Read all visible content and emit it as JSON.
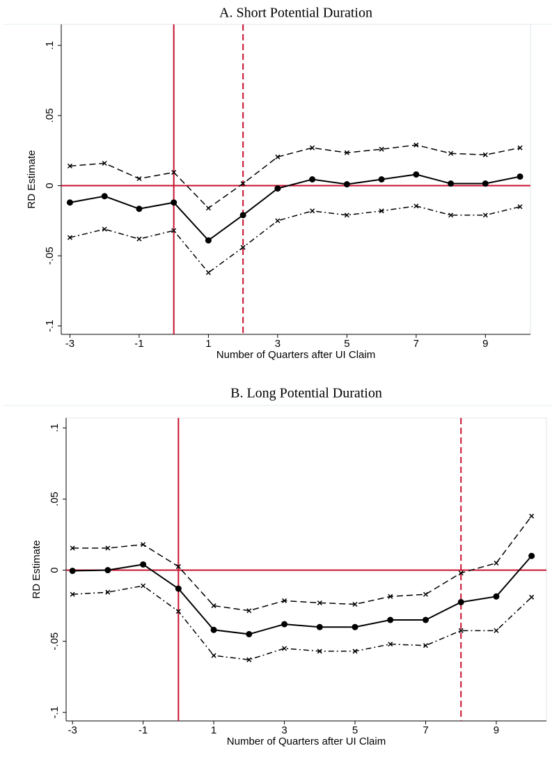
{
  "chart_data": [
    {
      "type": "line",
      "title": "A. Short Potential Duration",
      "x_label": "Number of Quarters after UI Claim",
      "y_label": "RD Estimate",
      "x": [
        -3,
        -2,
        -1,
        0,
        1,
        2,
        3,
        4,
        5,
        6,
        7,
        8,
        9,
        10
      ],
      "series": [
        {
          "color": "#000000",
          "line_style": "solid",
          "marker": "circle",
          "values": [
            -0.012,
            -0.0075,
            -0.0165,
            -0.012,
            -0.039,
            -0.021,
            -0.002,
            0.0045,
            0.001,
            0.0045,
            0.008,
            0.0015,
            0.0015,
            0.0065
          ]
        },
        {
          "color": "#000000",
          "line_style": "dashed",
          "marker": "x",
          "values": [
            0.014,
            0.016,
            0.005,
            0.0095,
            -0.016,
            0.0015,
            0.0205,
            0.027,
            0.0235,
            0.026,
            0.029,
            0.023,
            0.022,
            0.027
          ]
        },
        {
          "color": "#000000",
          "line_style": "dashdot",
          "marker": "x",
          "values": [
            -0.037,
            -0.031,
            -0.038,
            -0.032,
            -0.062,
            -0.044,
            -0.025,
            -0.018,
            -0.021,
            -0.018,
            -0.0145,
            -0.021,
            -0.021,
            -0.015
          ]
        }
      ],
      "xlim": [
        -3.25,
        10.3
      ],
      "xticks": [
        -3,
        -1,
        1,
        3,
        5,
        7,
        9
      ],
      "ylim": [
        -0.106,
        0.115
      ],
      "yticks": [
        {
          "value": -0.1,
          "label": "-.1"
        },
        {
          "value": -0.05,
          "label": "-.05"
        },
        0,
        {
          "value": 0.05,
          "label": ".05"
        },
        {
          "value": 0.1,
          "label": ".1"
        }
      ],
      "hline": 0,
      "reference_color": "#c8102e",
      "vlines": [
        {
          "x": 0,
          "line_style": "solid"
        },
        {
          "x": 2,
          "line_style": "dashed"
        }
      ]
    },
    {
      "type": "line",
      "title": "B. Long Potential Duration",
      "x_label": "Number of Quarters after UI Claim",
      "y_label": "RD Estimate",
      "x": [
        -3,
        -2,
        -1,
        0,
        1,
        2,
        3,
        4,
        5,
        6,
        7,
        8,
        9,
        10
      ],
      "series": [
        {
          "color": "#000000",
          "line_style": "solid",
          "marker": "circle",
          "values": [
            -0.0005,
            0,
            0.004,
            -0.013,
            -0.042,
            -0.045,
            -0.038,
            -0.04,
            -0.04,
            -0.035,
            -0.035,
            -0.0225,
            -0.0185,
            0.01
          ]
        },
        {
          "color": "#000000",
          "line_style": "dashed",
          "marker": "x",
          "values": [
            0.0155,
            0.0155,
            0.018,
            0.0025,
            -0.025,
            -0.0285,
            -0.0215,
            -0.023,
            -0.024,
            -0.0185,
            -0.017,
            -0.002,
            0.005,
            0.038
          ]
        },
        {
          "color": "#000000",
          "line_style": "dashdot",
          "marker": "x",
          "values": [
            -0.017,
            -0.0155,
            -0.011,
            -0.029,
            -0.06,
            -0.063,
            -0.055,
            -0.057,
            -0.057,
            -0.052,
            -0.053,
            -0.0425,
            -0.0425,
            -0.019
          ]
        }
      ],
      "xlim": [
        -3.18,
        10.42
      ],
      "xticks": [
        -3,
        -1,
        1,
        3,
        5,
        7,
        9
      ],
      "ylim": [
        -0.106,
        0.107
      ],
      "yticks": [
        {
          "value": -0.1,
          "label": "-.1"
        },
        {
          "value": -0.05,
          "label": "-.05"
        },
        0,
        {
          "value": 0.05,
          "label": ".05"
        },
        {
          "value": 0.1,
          "label": ".1"
        }
      ],
      "hline": 0,
      "reference_color": "#c8102e",
      "vlines": [
        {
          "x": 0,
          "line_style": "solid"
        },
        {
          "x": 8,
          "line_style": "dashed"
        }
      ]
    }
  ]
}
